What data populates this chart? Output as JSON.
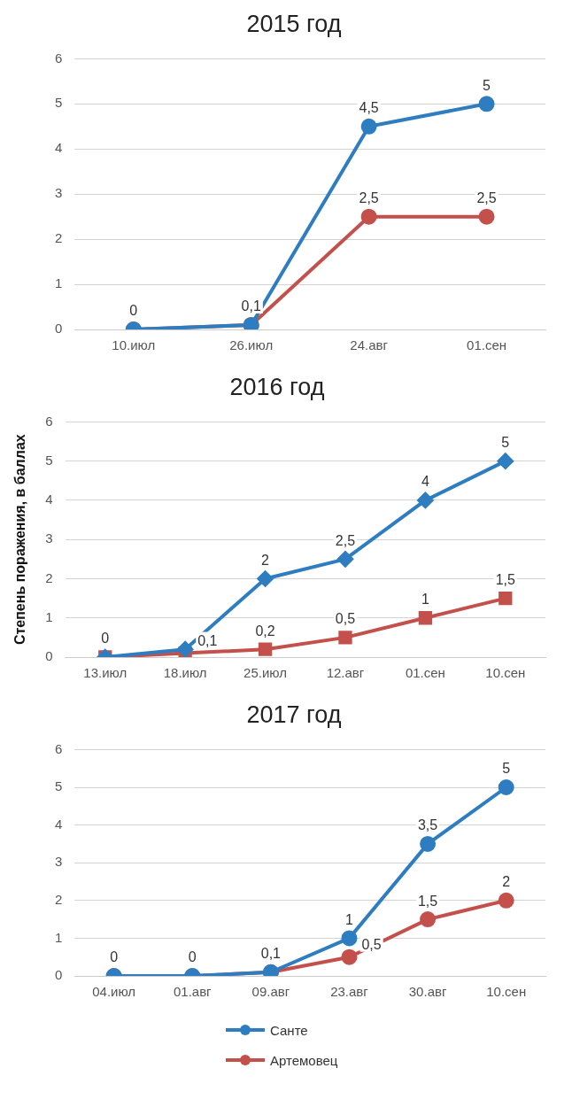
{
  "chart_data": [
    {
      "type": "line",
      "title": "2015 год",
      "categories": [
        "10.июл",
        "26.июл",
        "24.авг",
        "01.сен"
      ],
      "ylim": [
        0,
        6
      ],
      "yticks": [
        0,
        1,
        2,
        3,
        4,
        5,
        6
      ],
      "grid": "y",
      "marker": "circle",
      "legend": false,
      "series": [
        {
          "color": "#2e7dc1",
          "values": [
            0,
            0.1,
            4.5,
            5
          ],
          "value_labels": [
            null,
            null,
            "4,5",
            "5"
          ]
        },
        {
          "color": "#c4504c",
          "values": [
            0,
            0.1,
            2.5,
            2.5
          ],
          "value_labels": [
            "0",
            "0,1",
            "2,5",
            "2,5"
          ]
        }
      ]
    },
    {
      "type": "line",
      "title": "2016 год",
      "ylabel": "Степень поражения, в баллах",
      "categories": [
        "13.июл",
        "18.июл",
        "25.июл",
        "12.авг",
        "01.сен",
        "10.сен"
      ],
      "ylim": [
        0,
        6
      ],
      "yticks": [
        0,
        1,
        2,
        3,
        4,
        5,
        6
      ],
      "grid": "y",
      "legend": false,
      "series": [
        {
          "color": "#2e7dc1",
          "marker": "diamond",
          "values": [
            0,
            0.2,
            2,
            2.5,
            4,
            5
          ],
          "value_labels": [
            "0",
            null,
            "2",
            "2,5",
            "4",
            "5"
          ]
        },
        {
          "color": "#c4504c",
          "marker": "square",
          "values": [
            0,
            0.1,
            0.2,
            0.5,
            1,
            1.5
          ],
          "value_labels": [
            null,
            "0,1",
            "0,2",
            "0,5",
            "1",
            "1,5"
          ]
        }
      ]
    },
    {
      "type": "line",
      "title": "2017 год",
      "categories": [
        "04.июл",
        "01.авг",
        "09.авг",
        "23.авг",
        "30.авг",
        "10.сен"
      ],
      "ylim": [
        0,
        6
      ],
      "yticks": [
        0,
        1,
        2,
        3,
        4,
        5,
        6
      ],
      "grid": "y",
      "marker": "circle",
      "legend": "bottom",
      "series": [
        {
          "name": "Санте",
          "color": "#2e7dc1",
          "values": [
            0,
            0,
            0.1,
            1,
            3.5,
            5
          ],
          "value_labels": [
            null,
            null,
            null,
            "1",
            "3,5",
            "5"
          ]
        },
        {
          "name": "Артемовец",
          "color": "#c4504c",
          "values": [
            0,
            0,
            0.1,
            0.5,
            1.5,
            2
          ],
          "value_labels": [
            "0",
            "0",
            "0,1",
            "0,5",
            "1,5",
            "2"
          ]
        }
      ]
    }
  ]
}
